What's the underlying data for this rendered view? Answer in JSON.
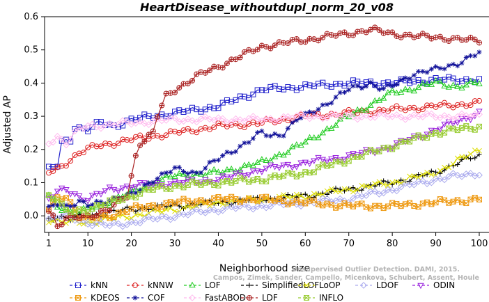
{
  "chart_data": {
    "type": "line",
    "title": "HeartDisease_withoutdupl_norm_20_v08",
    "xlabel": "Neighborhood size",
    "ylabel": "Adjusted AP",
    "xlim": [
      1,
      100
    ],
    "ylim": [
      -0.05,
      0.6
    ],
    "x_ticks": [
      1,
      10,
      20,
      30,
      40,
      50,
      60,
      70,
      80,
      90,
      100
    ],
    "y_ticks": [
      0.0,
      0.1,
      0.2,
      0.3,
      0.4,
      0.5,
      0.6
    ],
    "y_tick_labels": [
      "0.0",
      "0.1",
      "0.2",
      "0.3",
      "0.4",
      "0.5",
      "0.6"
    ],
    "grid": false,
    "legend_position": "bottom",
    "credit": [
      "Campos, Zimek, Sander, Campello, Micenkova, Schubert, Assent, Houle",
      "Unsupervised Outlier Detection. DAMI, 2015."
    ],
    "series": [
      {
        "name": "kNN",
        "color": "#2222cc",
        "marker": "square",
        "knots": [
          [
            1,
            0.14
          ],
          [
            3,
            0.15
          ],
          [
            4,
            0.22
          ],
          [
            6,
            0.23
          ],
          [
            7,
            0.27
          ],
          [
            10,
            0.26
          ],
          [
            13,
            0.28
          ],
          [
            16,
            0.27
          ],
          [
            20,
            0.29
          ],
          [
            30,
            0.31
          ],
          [
            40,
            0.33
          ],
          [
            50,
            0.38
          ],
          [
            60,
            0.39
          ],
          [
            70,
            0.4
          ],
          [
            80,
            0.4
          ],
          [
            90,
            0.41
          ],
          [
            100,
            0.41
          ]
        ]
      },
      {
        "name": "kNNW",
        "color": "#dd2222",
        "marker": "circle",
        "knots": [
          [
            1,
            0.13
          ],
          [
            3,
            0.14
          ],
          [
            8,
            0.19
          ],
          [
            12,
            0.21
          ],
          [
            20,
            0.23
          ],
          [
            30,
            0.25
          ],
          [
            40,
            0.27
          ],
          [
            50,
            0.28
          ],
          [
            60,
            0.3
          ],
          [
            70,
            0.31
          ],
          [
            80,
            0.32
          ],
          [
            90,
            0.33
          ],
          [
            100,
            0.34
          ]
        ]
      },
      {
        "name": "LOF",
        "color": "#22cc22",
        "marker": "triangle-up",
        "knots": [
          [
            1,
            0.06
          ],
          [
            3,
            0.03
          ],
          [
            5,
            0.02
          ],
          [
            7,
            0.0
          ],
          [
            10,
            0.02
          ],
          [
            15,
            0.04
          ],
          [
            20,
            0.07
          ],
          [
            25,
            0.1
          ],
          [
            30,
            0.12
          ],
          [
            40,
            0.13
          ],
          [
            50,
            0.16
          ],
          [
            60,
            0.22
          ],
          [
            65,
            0.26
          ],
          [
            70,
            0.3
          ],
          [
            80,
            0.37
          ],
          [
            90,
            0.4
          ],
          [
            95,
            0.39
          ],
          [
            100,
            0.4
          ]
        ]
      },
      {
        "name": "SimplifiedLOF",
        "color": "#000000",
        "marker": "plus",
        "knots": [
          [
            1,
            -0.01
          ],
          [
            3,
            0.0
          ],
          [
            6,
            -0.01
          ],
          [
            10,
            0.0
          ],
          [
            20,
            0.02
          ],
          [
            30,
            0.03
          ],
          [
            40,
            0.04
          ],
          [
            50,
            0.05
          ],
          [
            60,
            0.06
          ],
          [
            70,
            0.08
          ],
          [
            80,
            0.1
          ],
          [
            90,
            0.13
          ],
          [
            95,
            0.16
          ],
          [
            100,
            0.18
          ]
        ]
      },
      {
        "name": "LoOP",
        "color": "#dddd00",
        "marker": "cross",
        "knots": [
          [
            1,
            -0.01
          ],
          [
            5,
            -0.02
          ],
          [
            10,
            -0.02
          ],
          [
            20,
            0.0
          ],
          [
            30,
            0.02
          ],
          [
            40,
            0.04
          ],
          [
            50,
            0.05
          ],
          [
            60,
            0.06
          ],
          [
            70,
            0.08
          ],
          [
            80,
            0.1
          ],
          [
            90,
            0.13
          ],
          [
            100,
            0.2
          ]
        ]
      },
      {
        "name": "LDOF",
        "color": "#aaaaee",
        "marker": "diamond",
        "knots": [
          [
            1,
            -0.01
          ],
          [
            5,
            0.0
          ],
          [
            10,
            -0.02
          ],
          [
            15,
            -0.03
          ],
          [
            20,
            -0.02
          ],
          [
            30,
            0.0
          ],
          [
            40,
            0.02
          ],
          [
            50,
            0.03
          ],
          [
            60,
            0.04
          ],
          [
            70,
            0.05
          ],
          [
            80,
            0.08
          ],
          [
            90,
            0.11
          ],
          [
            100,
            0.13
          ]
        ]
      },
      {
        "name": "ODIN",
        "color": "#9922dd",
        "marker": "triangle-down",
        "knots": [
          [
            1,
            0.05
          ],
          [
            3,
            0.07
          ],
          [
            5,
            0.08
          ],
          [
            8,
            0.06
          ],
          [
            10,
            0.05
          ],
          [
            15,
            0.08
          ],
          [
            20,
            0.09
          ],
          [
            30,
            0.1
          ],
          [
            40,
            0.11
          ],
          [
            50,
            0.14
          ],
          [
            60,
            0.16
          ],
          [
            70,
            0.18
          ],
          [
            80,
            0.21
          ],
          [
            90,
            0.26
          ],
          [
            100,
            0.31
          ]
        ]
      },
      {
        "name": "KDEOS",
        "color": "#ee9911",
        "marker": "square-x",
        "knots": [
          [
            1,
            0.02
          ],
          [
            3,
            0.05
          ],
          [
            5,
            0.06
          ],
          [
            8,
            0.0
          ],
          [
            10,
            -0.01
          ],
          [
            15,
            0.0
          ],
          [
            20,
            0.02
          ],
          [
            30,
            0.04
          ],
          [
            40,
            0.05
          ],
          [
            50,
            0.05
          ],
          [
            60,
            0.04
          ],
          [
            70,
            0.03
          ],
          [
            80,
            0.03
          ],
          [
            90,
            0.04
          ],
          [
            100,
            0.05
          ]
        ]
      },
      {
        "name": "COF",
        "color": "#111199",
        "marker": "asterisk",
        "knots": [
          [
            1,
            0.02
          ],
          [
            3,
            0.04
          ],
          [
            5,
            0.03
          ],
          [
            8,
            0.04
          ],
          [
            10,
            0.03
          ],
          [
            15,
            0.05
          ],
          [
            20,
            0.06
          ],
          [
            25,
            0.11
          ],
          [
            30,
            0.14
          ],
          [
            35,
            0.13
          ],
          [
            40,
            0.17
          ],
          [
            45,
            0.21
          ],
          [
            50,
            0.25
          ],
          [
            52,
            0.24
          ],
          [
            55,
            0.25
          ],
          [
            58,
            0.29
          ],
          [
            60,
            0.3
          ],
          [
            65,
            0.34
          ],
          [
            70,
            0.38
          ],
          [
            75,
            0.4
          ],
          [
            78,
            0.38
          ],
          [
            80,
            0.39
          ],
          [
            85,
            0.43
          ],
          [
            90,
            0.44
          ],
          [
            95,
            0.46
          ],
          [
            100,
            0.49
          ]
        ]
      },
      {
        "name": "FastABOD",
        "color": "#ffbbee",
        "marker": "diamond",
        "knots": [
          [
            1,
            0.22
          ],
          [
            3,
            0.24
          ],
          [
            5,
            0.22
          ],
          [
            8,
            0.26
          ],
          [
            10,
            0.27
          ],
          [
            20,
            0.28
          ],
          [
            30,
            0.29
          ],
          [
            40,
            0.29
          ],
          [
            50,
            0.29
          ],
          [
            60,
            0.3
          ],
          [
            70,
            0.3
          ],
          [
            80,
            0.3
          ],
          [
            90,
            0.3
          ],
          [
            100,
            0.3
          ]
        ]
      },
      {
        "name": "LDF",
        "color": "#aa2222",
        "marker": "circle-plus",
        "knots": [
          [
            1,
            0.02
          ],
          [
            2,
            0.0
          ],
          [
            3,
            -0.03
          ],
          [
            5,
            -0.01
          ],
          [
            10,
            0.0
          ],
          [
            15,
            0.02
          ],
          [
            19,
            0.06
          ],
          [
            20,
            0.12
          ],
          [
            21,
            0.18
          ],
          [
            22,
            0.22
          ],
          [
            25,
            0.25
          ],
          [
            26,
            0.3
          ],
          [
            28,
            0.36
          ],
          [
            30,
            0.38
          ],
          [
            35,
            0.42
          ],
          [
            40,
            0.45
          ],
          [
            45,
            0.48
          ],
          [
            50,
            0.51
          ],
          [
            55,
            0.52
          ],
          [
            60,
            0.53
          ],
          [
            65,
            0.54
          ],
          [
            70,
            0.55
          ],
          [
            75,
            0.56
          ],
          [
            80,
            0.55
          ],
          [
            85,
            0.54
          ],
          [
            90,
            0.54
          ],
          [
            95,
            0.53
          ],
          [
            100,
            0.53
          ]
        ]
      },
      {
        "name": "INFLO",
        "color": "#99cc33",
        "marker": "square-x",
        "knots": [
          [
            1,
            0.06
          ],
          [
            3,
            0.05
          ],
          [
            5,
            0.01
          ],
          [
            10,
            0.02
          ],
          [
            15,
            0.04
          ],
          [
            20,
            0.06
          ],
          [
            25,
            0.08
          ],
          [
            30,
            0.09
          ],
          [
            40,
            0.1
          ],
          [
            50,
            0.11
          ],
          [
            60,
            0.13
          ],
          [
            70,
            0.17
          ],
          [
            80,
            0.21
          ],
          [
            90,
            0.25
          ],
          [
            100,
            0.27
          ]
        ]
      }
    ]
  }
}
